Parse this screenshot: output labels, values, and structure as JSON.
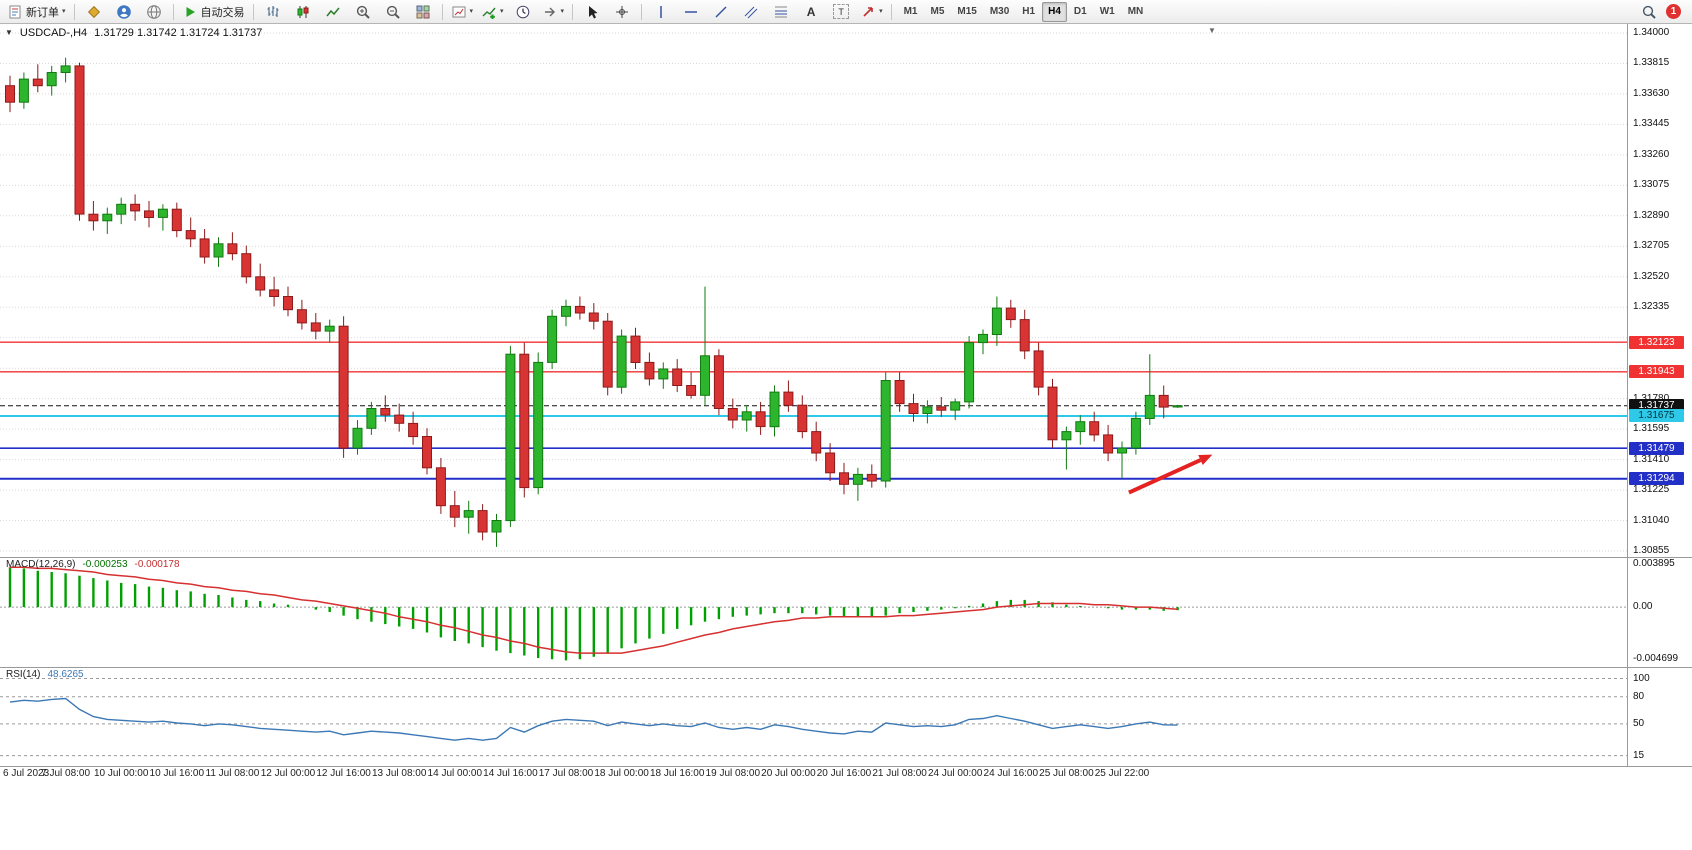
{
  "toolbar": {
    "new_order_label": "新订单",
    "autotrading_label": "自动交易",
    "timeframes": [
      "M1",
      "M5",
      "M15",
      "M30",
      "H1",
      "H4",
      "D1",
      "W1",
      "MN"
    ],
    "active_timeframe": "H4",
    "notification_count": "1"
  },
  "icons": {
    "caret": "▾",
    "collapse_marker": "▼",
    "shift_marker": "▼",
    "text_tool": "A",
    "label_tool": "T"
  },
  "chart_header": {
    "symbol": "USDCAD-,H4",
    "ohlc": "1.31729 1.31742 1.31724 1.31737"
  },
  "indicators": {
    "macd": {
      "label": "MACD(12,26,9)",
      "main_value": "-0.000253",
      "signal_value": "-0.000178",
      "axis_labels": [
        "0.003895",
        "0.00",
        "-0.004699"
      ]
    },
    "rsi": {
      "label": "RSI(14)",
      "value": "48.6265",
      "axis_labels": [
        "100",
        "80",
        "50",
        "15"
      ]
    }
  },
  "chart_data": [
    {
      "type": "candlestick",
      "symbol": "USDCAD",
      "timeframe": "H4",
      "title": "USDCAD-,H4",
      "ohlc_current": {
        "open": 1.31729,
        "high": 1.31742,
        "low": 1.31724,
        "close": 1.31737
      },
      "ylim": [
        1.30855,
        1.34
      ],
      "grid_step": 0.00185,
      "y_ticks": [
        "1.34000",
        "1.33815",
        "1.33630",
        "1.33445",
        "1.33260",
        "1.33075",
        "1.32890",
        "1.32705",
        "1.32520",
        "1.32335",
        "1.31780",
        "1.31595",
        "1.31410",
        "1.31225",
        "1.31040",
        "1.30855"
      ],
      "x_labels": [
        "6 Jul 2023",
        "7 Jul 08:00",
        "10 Jul 00:00",
        "10 Jul 16:00",
        "11 Jul 08:00",
        "12 Jul 00:00",
        "12 Jul 16:00",
        "13 Jul 08:00",
        "14 Jul 00:00",
        "14 Jul 16:00",
        "17 Jul 08:00",
        "18 Jul 00:00",
        "18 Jul 16:00",
        "19 Jul 08:00",
        "20 Jul 00:00",
        "20 Jul 16:00",
        "21 Jul 08:00",
        "24 Jul 00:00",
        "24 Jul 16:00",
        "25 Jul 08:00",
        "25 Jul 22:00"
      ],
      "label_every_n_candles": 4,
      "colors": {
        "up": "#2db52d",
        "up_border": "#117a11",
        "down": "#d93434",
        "down_border": "#8c1a1a",
        "grid": "#d9d9d9"
      },
      "levels": [
        {
          "price": 1.32123,
          "label": "1.32123",
          "color": "#f03232",
          "text_color": "#ffffff",
          "width": 1.4
        },
        {
          "price": 1.31943,
          "label": "1.31943",
          "color": "#f03232",
          "text_color": "#ffffff",
          "width": 1.4
        },
        {
          "price": 1.31737,
          "label": "1.31737",
          "color": "#101010",
          "text_color": "#ffffff",
          "width": 1,
          "dashed": true,
          "is_current_price": true
        },
        {
          "price": 1.31675,
          "label": "1.31675",
          "color": "#2ec9e8",
          "text_color": "#00313a",
          "width": 2
        },
        {
          "price": 1.31479,
          "label": "1.31479",
          "color": "#2330c8",
          "text_color": "#ffffff",
          "width": 1.6
        },
        {
          "price": 1.31294,
          "label": "1.31294",
          "color": "#2330c8",
          "text_color": "#ffffff",
          "width": 2
        }
      ],
      "annotation_arrow": {
        "from_index": 80.5,
        "from_price": 1.3121,
        "to_index": 86.5,
        "to_price": 1.3144,
        "color": "#e42222"
      },
      "candles": [
        [
          1.3368,
          1.3374,
          1.3352,
          1.3358
        ],
        [
          1.3358,
          1.3376,
          1.3354,
          1.3372
        ],
        [
          1.3372,
          1.3381,
          1.3364,
          1.3368
        ],
        [
          1.3368,
          1.338,
          1.3362,
          1.3376
        ],
        [
          1.3376,
          1.3385,
          1.337,
          1.338
        ],
        [
          1.338,
          1.3382,
          1.3286,
          1.329
        ],
        [
          1.329,
          1.3298,
          1.328,
          1.3286
        ],
        [
          1.3286,
          1.3294,
          1.3278,
          1.329
        ],
        [
          1.329,
          1.33,
          1.3284,
          1.3296
        ],
        [
          1.3296,
          1.3302,
          1.3286,
          1.3292
        ],
        [
          1.3292,
          1.3298,
          1.3282,
          1.3288
        ],
        [
          1.3288,
          1.3296,
          1.328,
          1.3293
        ],
        [
          1.3293,
          1.3297,
          1.3276,
          1.328
        ],
        [
          1.328,
          1.3288,
          1.327,
          1.3275
        ],
        [
          1.3275,
          1.3281,
          1.326,
          1.3264
        ],
        [
          1.3264,
          1.3276,
          1.3258,
          1.3272
        ],
        [
          1.3272,
          1.3279,
          1.3262,
          1.3266
        ],
        [
          1.3266,
          1.3271,
          1.3248,
          1.3252
        ],
        [
          1.3252,
          1.326,
          1.324,
          1.3244
        ],
        [
          1.3244,
          1.3252,
          1.3234,
          1.324
        ],
        [
          1.324,
          1.3246,
          1.3228,
          1.3232
        ],
        [
          1.3232,
          1.3238,
          1.322,
          1.3224
        ],
        [
          1.3224,
          1.323,
          1.3214,
          1.3219
        ],
        [
          1.3219,
          1.3226,
          1.3212,
          1.3222
        ],
        [
          1.3222,
          1.3228,
          1.3142,
          1.3148
        ],
        [
          1.3148,
          1.3165,
          1.3144,
          1.316
        ],
        [
          1.316,
          1.3176,
          1.3156,
          1.3172
        ],
        [
          1.3172,
          1.318,
          1.3164,
          1.3168
        ],
        [
          1.3168,
          1.3175,
          1.3158,
          1.3163
        ],
        [
          1.3163,
          1.317,
          1.315,
          1.3155
        ],
        [
          1.3155,
          1.316,
          1.3132,
          1.3136
        ],
        [
          1.3136,
          1.3142,
          1.3108,
          1.3113
        ],
        [
          1.3113,
          1.3122,
          1.31,
          1.3106
        ],
        [
          1.3106,
          1.3116,
          1.3096,
          1.311
        ],
        [
          1.311,
          1.3114,
          1.3092,
          1.3097
        ],
        [
          1.3097,
          1.3108,
          1.3088,
          1.3104
        ],
        [
          1.3104,
          1.321,
          1.31,
          1.3205
        ],
        [
          1.3205,
          1.3212,
          1.3118,
          1.3124
        ],
        [
          1.3124,
          1.3206,
          1.312,
          1.32
        ],
        [
          1.32,
          1.3232,
          1.3196,
          1.3228
        ],
        [
          1.3228,
          1.3238,
          1.3222,
          1.3234
        ],
        [
          1.3234,
          1.324,
          1.3226,
          1.323
        ],
        [
          1.323,
          1.3236,
          1.322,
          1.3225
        ],
        [
          1.3225,
          1.323,
          1.318,
          1.3185
        ],
        [
          1.3185,
          1.322,
          1.3181,
          1.3216
        ],
        [
          1.3216,
          1.3221,
          1.3196,
          1.32
        ],
        [
          1.32,
          1.3206,
          1.3186,
          1.319
        ],
        [
          1.319,
          1.32,
          1.3184,
          1.3196
        ],
        [
          1.3196,
          1.3202,
          1.3182,
          1.3186
        ],
        [
          1.3186,
          1.3194,
          1.3178,
          1.318
        ],
        [
          1.318,
          1.3246,
          1.3174,
          1.3204
        ],
        [
          1.3204,
          1.3208,
          1.3168,
          1.3172
        ],
        [
          1.3172,
          1.3178,
          1.316,
          1.3165
        ],
        [
          1.3165,
          1.3174,
          1.3158,
          1.317
        ],
        [
          1.317,
          1.3176,
          1.3156,
          1.3161
        ],
        [
          1.3161,
          1.3186,
          1.3155,
          1.3182
        ],
        [
          1.3182,
          1.3189,
          1.317,
          1.3174
        ],
        [
          1.3174,
          1.318,
          1.3154,
          1.3158
        ],
        [
          1.3158,
          1.3164,
          1.314,
          1.3145
        ],
        [
          1.3145,
          1.3151,
          1.3128,
          1.3133
        ],
        [
          1.3133,
          1.3139,
          1.312,
          1.3126
        ],
        [
          1.3126,
          1.3136,
          1.3116,
          1.3132
        ],
        [
          1.3132,
          1.3138,
          1.3124,
          1.3128
        ],
        [
          1.3128,
          1.3194,
          1.3124,
          1.3189
        ],
        [
          1.3189,
          1.3194,
          1.317,
          1.3175
        ],
        [
          1.3175,
          1.3181,
          1.3164,
          1.3169
        ],
        [
          1.3169,
          1.3177,
          1.3163,
          1.3173
        ],
        [
          1.3173,
          1.3179,
          1.3167,
          1.3171
        ],
        [
          1.3171,
          1.3178,
          1.3165,
          1.3176
        ],
        [
          1.3176,
          1.3216,
          1.3172,
          1.3212
        ],
        [
          1.3212,
          1.322,
          1.3205,
          1.3217
        ],
        [
          1.3217,
          1.324,
          1.321,
          1.3233
        ],
        [
          1.3233,
          1.3238,
          1.3221,
          1.3226
        ],
        [
          1.3226,
          1.3232,
          1.3202,
          1.3207
        ],
        [
          1.3207,
          1.3212,
          1.318,
          1.3185
        ],
        [
          1.3185,
          1.319,
          1.3148,
          1.3153
        ],
        [
          1.3153,
          1.3161,
          1.3135,
          1.3158
        ],
        [
          1.3158,
          1.3168,
          1.315,
          1.3164
        ],
        [
          1.3164,
          1.317,
          1.3152,
          1.3156
        ],
        [
          1.3156,
          1.3162,
          1.314,
          1.3145
        ],
        [
          1.3145,
          1.3152,
          1.313,
          1.3148
        ],
        [
          1.3148,
          1.317,
          1.3144,
          1.3166
        ],
        [
          1.3166,
          1.3205,
          1.3162,
          1.318
        ],
        [
          1.318,
          1.3186,
          1.3166,
          1.31729
        ],
        [
          1.31729,
          1.31742,
          1.31724,
          1.31737
        ]
      ]
    },
    {
      "type": "macd",
      "name": "MACD(12,26,9)",
      "ylim": [
        -0.004699,
        0.003895
      ],
      "axis_ticks": [
        "0.003895",
        "0.00",
        "-0.004699"
      ],
      "histogram_color": "#00a000",
      "signal_color": "#d63030",
      "current_values": [
        -0.000253,
        -0.000178
      ],
      "values": [
        0.0033,
        0.0032,
        0.003,
        0.0029,
        0.0028,
        0.0026,
        0.0024,
        0.0022,
        0.002,
        0.0019,
        0.0017,
        0.0016,
        0.0014,
        0.0013,
        0.0011,
        0.001,
        0.0008,
        0.0006,
        0.0005,
        0.0003,
        0.0002,
        0.0,
        -0.0002,
        -0.0004,
        -0.0007,
        -0.001,
        -0.0012,
        -0.0014,
        -0.0016,
        -0.0018,
        -0.0021,
        -0.0025,
        -0.0028,
        -0.003,
        -0.0033,
        -0.0036,
        -0.0038,
        -0.004,
        -0.0042,
        -0.0043,
        -0.0044,
        -0.0043,
        -0.0041,
        -0.0038,
        -0.0034,
        -0.003,
        -0.0026,
        -0.0022,
        -0.0018,
        -0.0015,
        -0.0012,
        -0.001,
        -0.0008,
        -0.0007,
        -0.0006,
        -0.0005,
        -0.0005,
        -0.0005,
        -0.0006,
        -0.0007,
        -0.0008,
        -0.0008,
        -0.0008,
        -0.0007,
        -0.0005,
        -0.0004,
        -0.0003,
        -0.0002,
        -0.0001,
        0.0001,
        0.0003,
        0.0005,
        0.0006,
        0.0006,
        0.0005,
        0.0004,
        0.0002,
        0.0001,
        0.0,
        -0.0001,
        -0.0002,
        -0.0002,
        -0.0002,
        -0.0003,
        -0.000253
      ],
      "signal": [
        0.0033,
        0.0033,
        0.0032,
        0.0032,
        0.0031,
        0.003,
        0.0029,
        0.0027,
        0.0026,
        0.0025,
        0.0023,
        0.0022,
        0.002,
        0.0019,
        0.0017,
        0.0016,
        0.0014,
        0.0013,
        0.0011,
        0.001,
        0.0008,
        0.0006,
        0.0005,
        0.0003,
        0.0001,
        -0.0001,
        -0.0003,
        -0.0005,
        -0.0008,
        -0.001,
        -0.0012,
        -0.0015,
        -0.0017,
        -0.002,
        -0.0023,
        -0.0025,
        -0.0028,
        -0.003,
        -0.0033,
        -0.0035,
        -0.0037,
        -0.0038,
        -0.0038,
        -0.0038,
        -0.0038,
        -0.0036,
        -0.0034,
        -0.0032,
        -0.0029,
        -0.0026,
        -0.0023,
        -0.0021,
        -0.0018,
        -0.0016,
        -0.0014,
        -0.0012,
        -0.0011,
        -0.0009,
        -0.0009,
        -0.0008,
        -0.0008,
        -0.0008,
        -0.0008,
        -0.0008,
        -0.0007,
        -0.0007,
        -0.0006,
        -0.0005,
        -0.0004,
        -0.0003,
        -0.0002,
        0.0,
        0.0001,
        0.0002,
        0.0003,
        0.0003,
        0.0003,
        0.0003,
        0.0002,
        0.0002,
        0.0001,
        0.0,
        0.0,
        -0.0001,
        -0.000178
      ]
    },
    {
      "type": "line",
      "name": "RSI(14)",
      "current_value": 48.6265,
      "scale": [
        8,
        105
      ],
      "levels": [
        100,
        80,
        50,
        15
      ],
      "axis_ticks": [
        "100",
        "80",
        "50",
        "15"
      ],
      "color": "#3b78b5",
      "values": [
        74,
        76,
        75,
        77,
        78,
        66,
        58,
        55,
        54,
        53,
        52,
        53,
        51,
        50,
        48,
        50,
        49,
        47,
        45,
        44,
        43,
        42,
        41,
        42,
        38,
        40,
        42,
        41,
        40,
        38,
        36,
        34,
        32,
        34,
        32,
        34,
        46,
        41,
        48,
        53,
        55,
        54,
        53,
        48,
        52,
        50,
        48,
        50,
        48,
        47,
        51,
        46,
        44,
        46,
        44,
        49,
        47,
        44,
        42,
        40,
        39,
        42,
        41,
        51,
        49,
        47,
        48,
        47,
        49,
        55,
        56,
        59,
        56,
        53,
        49,
        45,
        47,
        49,
        47,
        45,
        47,
        50,
        52,
        49,
        48.6265
      ]
    }
  ]
}
